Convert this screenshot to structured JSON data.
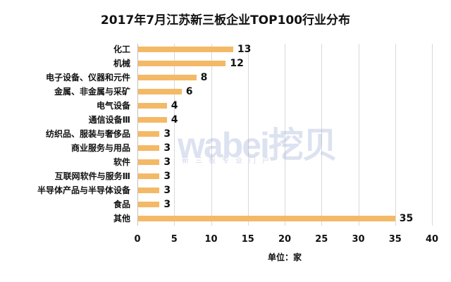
{
  "chart_data": {
    "type": "bar",
    "orientation": "horizontal",
    "title": "2017年7月江苏新三板企业TOP100行业分布",
    "xlabel": "单位：家",
    "ylabel": "",
    "categories": [
      "化工",
      "机械",
      "电子设备、仪器和元件",
      "金属、非金属与采矿",
      "电气设备",
      "通信设备Ⅲ",
      "纺织品、服装与奢侈品",
      "商业服务与用品",
      "软件",
      "互联网软件与服务Ⅲ",
      "半导体产品与半导体设备",
      "食品",
      "其他"
    ],
    "values": [
      13,
      12,
      8,
      6,
      4,
      4,
      3,
      3,
      3,
      3,
      3,
      3,
      35
    ],
    "xlim": [
      0,
      40
    ],
    "xticks": [
      "0",
      "5",
      "10",
      "15",
      "20",
      "25",
      "30",
      "35",
      "40"
    ],
    "grid": true,
    "legend": "none",
    "bar_color": "#F4B966",
    "data_labels": true
  },
  "watermark": {
    "main": "wabei挖贝",
    "sub": "新三板专业门户"
  }
}
